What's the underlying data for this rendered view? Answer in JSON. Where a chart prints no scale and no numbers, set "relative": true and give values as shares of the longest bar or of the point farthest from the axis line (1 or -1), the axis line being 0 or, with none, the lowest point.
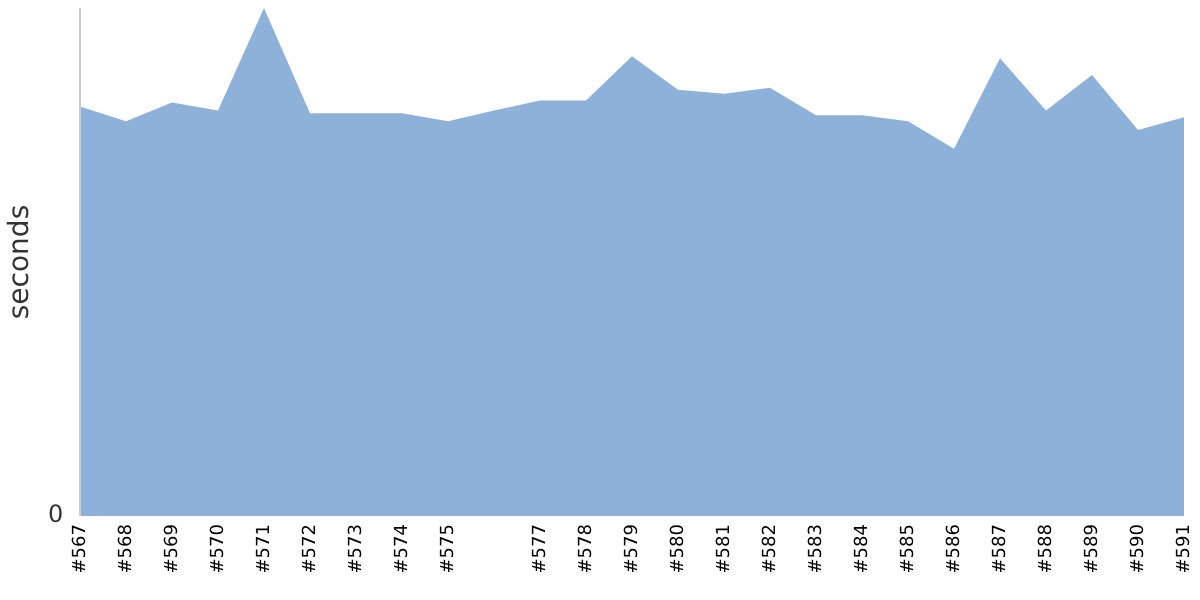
{
  "chart_data": {
    "type": "area",
    "ylabel": "seconds",
    "relative": true,
    "annotations": [
      "0"
    ],
    "categories": [
      "#567",
      "#568",
      "#569",
      "#570",
      "#571",
      "#572",
      "#573",
      "#574",
      "#575",
      null,
      "#577",
      "#578",
      "#579",
      "#580",
      "#581",
      "#582",
      "#583",
      "#584",
      "#585",
      "#586",
      "#587",
      "#588",
      "#589",
      "#590",
      "#591"
    ],
    "series": [
      {
        "color": "#8eb1d9",
        "values": [
          0.806,
          0.777,
          0.814,
          0.798,
          1,
          0.793,
          0.793,
          0.793,
          0.777,
          0.798,
          0.818,
          0.818,
          0.905,
          0.839,
          0.831,
          0.843,
          0.789,
          0.789,
          0.777,
          0.723,
          0.901,
          0.798,
          0.868,
          0.76,
          0.785
        ]
      }
    ]
  }
}
